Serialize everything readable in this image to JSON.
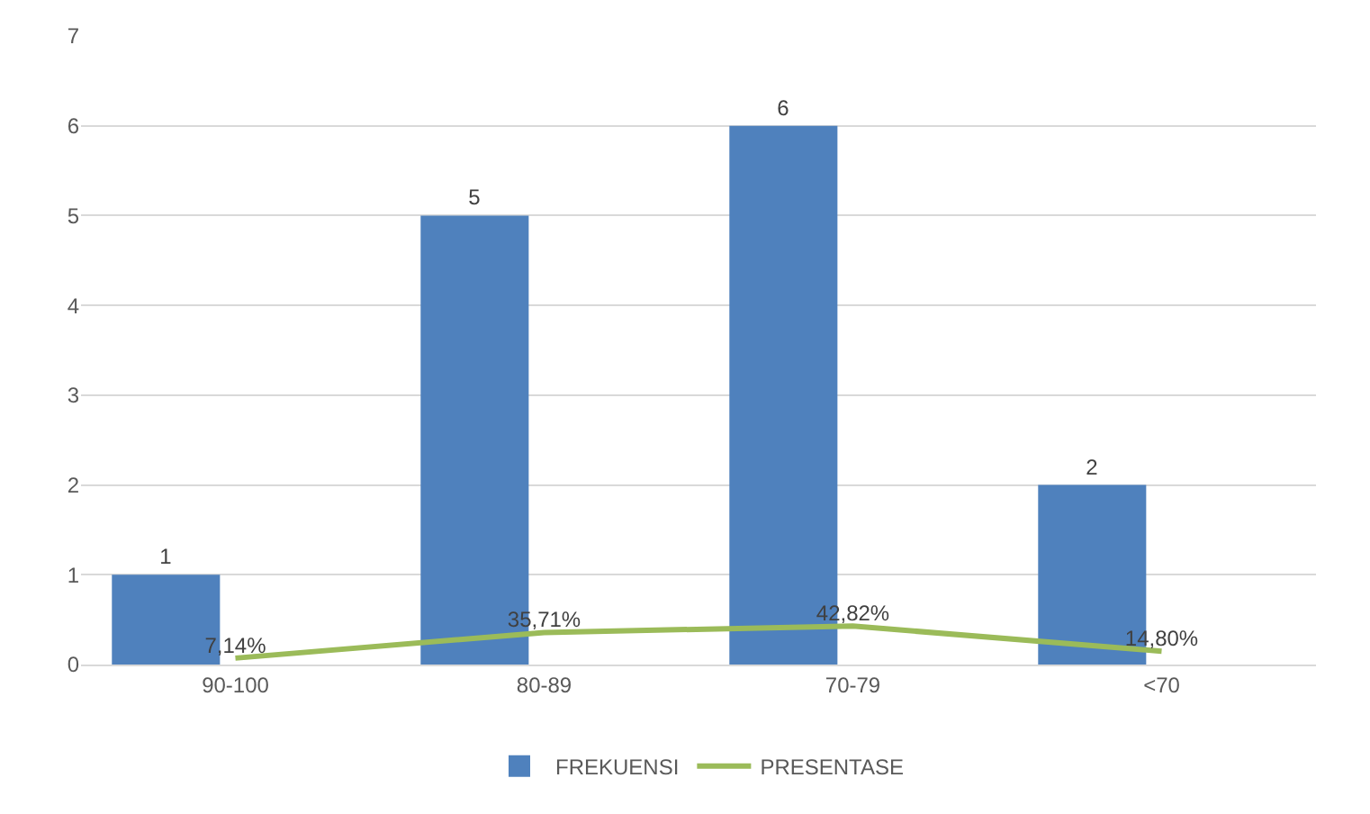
{
  "chart_data": {
    "type": "bar",
    "categories": [
      "90-100",
      "80-89",
      "70-79",
      "<70"
    ],
    "series": [
      {
        "name": "FREKUENSI",
        "color": "#4f81bd",
        "values": [
          1,
          5,
          6,
          2
        ],
        "value_labels": [
          "1",
          "5",
          "6",
          "2"
        ]
      },
      {
        "name": "PRESENTASE",
        "type": "line",
        "color": "#9bbb59",
        "values": [
          0.0714,
          0.3571,
          0.4282,
          0.148
        ],
        "value_labels": [
          "7,14%",
          "35,71%",
          "42,82%",
          "14,80%"
        ]
      }
    ],
    "ylim": [
      0,
      7
    ],
    "yticks": [
      0,
      1,
      2,
      3,
      4,
      5,
      6,
      7
    ],
    "grid": "y",
    "legend": "bottom",
    "marker": "none"
  }
}
